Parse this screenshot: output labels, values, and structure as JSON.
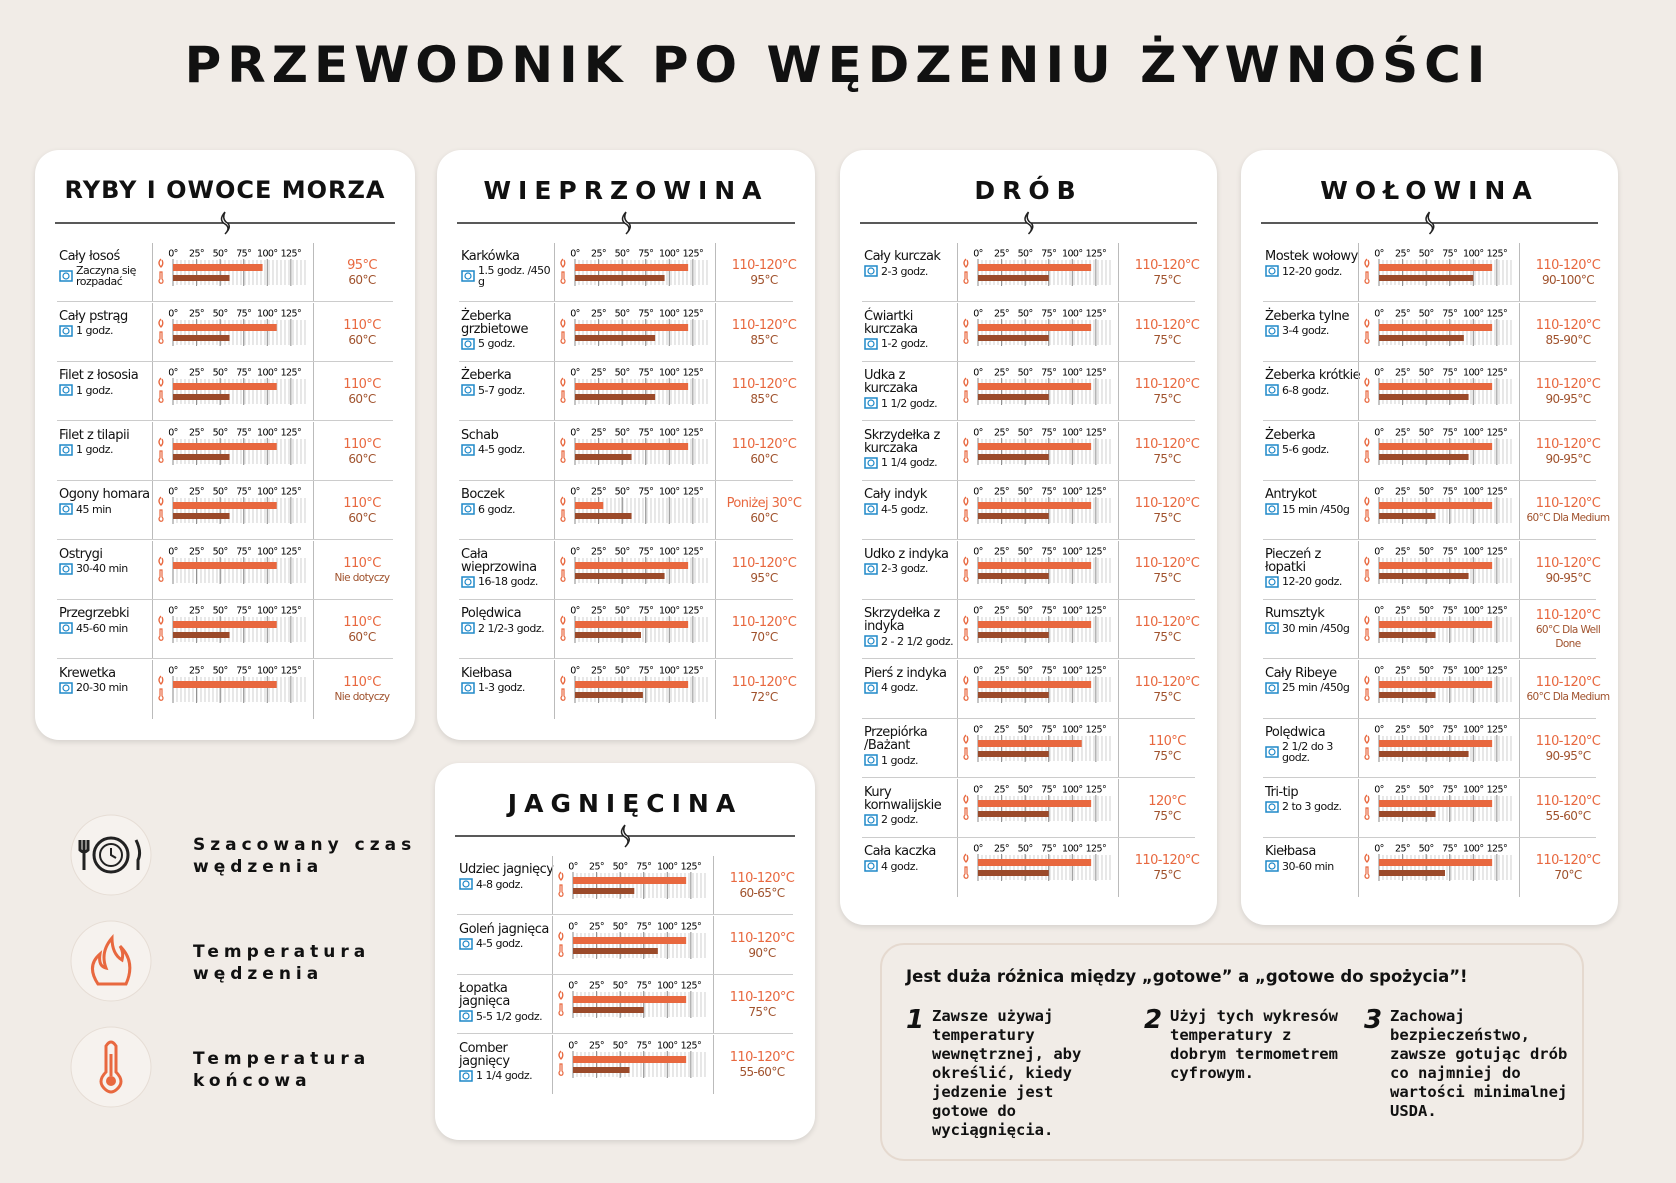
{
  "title": "PRZEWODNIK PO WĘDZENIU ŻYWNOŚCI",
  "scale": {
    "lim": [
      0,
      140
    ],
    "ticks": [
      {
        "value": 0,
        "label": "0°"
      },
      {
        "value": 25,
        "label": "25°"
      },
      {
        "value": 50,
        "label": "50°"
      },
      {
        "value": 75,
        "label": "75°"
      },
      {
        "value": 100,
        "label": "100°"
      },
      {
        "value": 125,
        "label": "125°"
      }
    ]
  },
  "panels": [
    {
      "title": "RYBY I OWOCE MORZA",
      "rows": [
        {
          "name": "Cały łosoś",
          "time": "Zaczyna się rozpadać",
          "smoke": "95°C",
          "core": "60°C",
          "smoke_val": 95,
          "core_val": 60
        },
        {
          "name": "Cały pstrąg",
          "time": "1 godz.",
          "smoke": "110°C",
          "core": "60°C",
          "smoke_val": 110,
          "core_val": 60
        },
        {
          "name": "Filet z łososia",
          "time": "1 godz.",
          "smoke": "110°C",
          "core": "60°C",
          "smoke_val": 110,
          "core_val": 60
        },
        {
          "name": "Filet z tilapii",
          "time": "1 godz.",
          "smoke": "110°C",
          "core": "60°C",
          "smoke_val": 110,
          "core_val": 60
        },
        {
          "name": "Ogony homara",
          "time": "45 min",
          "smoke": "110°C",
          "core": "60°C",
          "smoke_val": 110,
          "core_val": 60
        },
        {
          "name": "Ostrygi",
          "time": "30-40 min",
          "smoke": "110°C",
          "core": "Nie dotyczy",
          "smoke_val": 110,
          "core_val": null
        },
        {
          "name": "Przegrzebki",
          "time": "45-60 min",
          "smoke": "110°C",
          "core": "60°C",
          "smoke_val": 110,
          "core_val": 60
        },
        {
          "name": "Krewetka",
          "time": "20-30 min",
          "smoke": "110°C",
          "core": "Nie dotyczy",
          "smoke_val": 110,
          "core_val": null
        }
      ]
    },
    {
      "title": "WIEPRZOWINA",
      "rows": [
        {
          "name": "Karkówka",
          "time": "1.5 godz. /450 g",
          "smoke": "110-120°C",
          "core": "95°C",
          "smoke_val": 120,
          "core_val": 95
        },
        {
          "name": "Żeberka grzbietowe",
          "time": "5 godz.",
          "smoke": "110-120°C",
          "core": "85°C",
          "smoke_val": 120,
          "core_val": 85
        },
        {
          "name": "Żeberka",
          "time": "5-7 godz.",
          "smoke": "110-120°C",
          "core": "85°C",
          "smoke_val": 120,
          "core_val": 85
        },
        {
          "name": "Schab",
          "time": "4-5 godz.",
          "smoke": "110-120°C",
          "core": "60°C",
          "smoke_val": 120,
          "core_val": 60
        },
        {
          "name": "Boczek",
          "time": "6 godz.",
          "smoke": "Poniżej 30°C",
          "core": "60°C",
          "smoke_val": 30,
          "core_val": 60
        },
        {
          "name": "Cała wieprzowina",
          "time": "16-18 godz.",
          "smoke": "110-120°C",
          "core": "95°C",
          "smoke_val": 120,
          "core_val": 95
        },
        {
          "name": "Polędwica",
          "time": "2 1/2-3 godz.",
          "smoke": "110-120°C",
          "core": "70°C",
          "smoke_val": 120,
          "core_val": 70
        },
        {
          "name": "Kiełbasa",
          "time": "1-3 godz.",
          "smoke": "110-120°C",
          "core": "72°C",
          "smoke_val": 120,
          "core_val": 72
        }
      ]
    },
    {
      "title": "DRÓB",
      "rows": [
        {
          "name": "Cały kurczak",
          "time": "2-3 godz.",
          "smoke": "110-120°C",
          "core": "75°C",
          "smoke_val": 120,
          "core_val": 75
        },
        {
          "name": "Ćwiartki kurczaka",
          "time": "1-2 godz.",
          "smoke": "110-120°C",
          "core": "75°C",
          "smoke_val": 120,
          "core_val": 75
        },
        {
          "name": "Udka z kurczaka",
          "time": "1 1/2 godz.",
          "smoke": "110-120°C",
          "core": "75°C",
          "smoke_val": 120,
          "core_val": 75
        },
        {
          "name": "Skrzydełka z kurczaka",
          "time": "1 1/4 godz.",
          "smoke": "110-120°C",
          "core": "75°C",
          "smoke_val": 120,
          "core_val": 75
        },
        {
          "name": "Cały indyk",
          "time": "4-5 godz.",
          "smoke": "110-120°C",
          "core": "75°C",
          "smoke_val": 120,
          "core_val": 75
        },
        {
          "name": "Udko z indyka",
          "time": "2-3 godz.",
          "smoke": "110-120°C",
          "core": "75°C",
          "smoke_val": 120,
          "core_val": 75
        },
        {
          "name": "Skrzydełka z indyka",
          "time": "2 - 2 1/2 godz.",
          "smoke": "110-120°C",
          "core": "75°C",
          "smoke_val": 120,
          "core_val": 75
        },
        {
          "name": "Pierś z indyka",
          "time": "4 godz.",
          "smoke": "110-120°C",
          "core": "75°C",
          "smoke_val": 120,
          "core_val": 75
        },
        {
          "name": "Przepiórka /Bażant",
          "time": "1 godz.",
          "smoke": "110°C",
          "core": "75°C",
          "smoke_val": 110,
          "core_val": 75
        },
        {
          "name": "Kury kornwalijskie",
          "time": "2 godz.",
          "smoke": "120°C",
          "core": "75°C",
          "smoke_val": 120,
          "core_val": 75
        },
        {
          "name": "Cała kaczka",
          "time": "4 godz.",
          "smoke": "110-120°C",
          "core": "75°C",
          "smoke_val": 120,
          "core_val": 75
        }
      ]
    },
    {
      "title": "WOŁOWINA",
      "rows": [
        {
          "name": "Mostek wołowy",
          "time": "12-20 godz.",
          "smoke": "110-120°C",
          "core": "90-100°C",
          "smoke_val": 120,
          "core_val": 100
        },
        {
          "name": "Żeberka tylne",
          "time": "3-4 godz.",
          "smoke": "110-120°C",
          "core": "85-90°C",
          "smoke_val": 120,
          "core_val": 90
        },
        {
          "name": "Żeberka krótkie",
          "time": "6-8 godz.",
          "smoke": "110-120°C",
          "core": "90-95°C",
          "smoke_val": 120,
          "core_val": 95
        },
        {
          "name": "Żeberka",
          "time": "5-6 godz.",
          "smoke": "110-120°C",
          "core": "90-95°C",
          "smoke_val": 120,
          "core_val": 95
        },
        {
          "name": "Antrykot",
          "time": "15 min /450g",
          "smoke": "110-120°C",
          "core": "60°C Dla Medium",
          "smoke_val": 120,
          "core_val": 60
        },
        {
          "name": "Pieczeń z łopatki",
          "time": "12-20 godz.",
          "smoke": "110-120°C",
          "core": "90-95°C",
          "smoke_val": 120,
          "core_val": 95
        },
        {
          "name": "Rumsztyk",
          "time": "30 min /450g",
          "smoke": "110-120°C",
          "core": "60°C Dla Well Done",
          "smoke_val": 120,
          "core_val": 60
        },
        {
          "name": "Cały Ribeye",
          "time": "25 min /450g",
          "smoke": "110-120°C",
          "core": "60°C Dla Medium",
          "smoke_val": 120,
          "core_val": 60
        },
        {
          "name": "Polędwica",
          "time": "2 1/2 do 3 godz.",
          "smoke": "110-120°C",
          "core": "90-95°C",
          "smoke_val": 120,
          "core_val": 95
        },
        {
          "name": "Tri-tip",
          "time": "2 to 3 godz.",
          "smoke": "110-120°C",
          "core": "55-60°C",
          "smoke_val": 120,
          "core_val": 60
        },
        {
          "name": "Kiełbasa",
          "time": "30-60 min",
          "smoke": "110-120°C",
          "core": "70°C",
          "smoke_val": 120,
          "core_val": 70
        }
      ]
    },
    {
      "title": "JAGNIĘCINA",
      "rows": [
        {
          "name": "Udziec jagnięcy",
          "time": "4-8 godz.",
          "smoke": "110-120°C",
          "core": "60-65°C",
          "smoke_val": 120,
          "core_val": 65
        },
        {
          "name": "Goleń jagnięca",
          "time": "4-5 godz.",
          "smoke": "110-120°C",
          "core": "90°C",
          "smoke_val": 120,
          "core_val": 90
        },
        {
          "name": "Łopatka jagnięca",
          "time": "5-5 1/2 godz.",
          "smoke": "110-120°C",
          "core": "75°C",
          "smoke_val": 120,
          "core_val": 75
        },
        {
          "name": "Comber jagnięcy",
          "time": "1 1/4 godz.",
          "smoke": "110-120°C",
          "core": "55-60°C",
          "smoke_val": 120,
          "core_val": 60
        }
      ]
    }
  ],
  "legend": [
    "Szacowany czas wędzenia",
    "Temperatura wędzenia",
    "Temperatura końcowa"
  ],
  "note": {
    "heading": "Jest duża różnica między „gotowe” a „gotowe do spożycia”!",
    "tips": [
      {
        "number": "1",
        "text": "Zawsze używaj temperatury wewnętrznej, aby określić, kiedy jedzenie jest gotowe do wyciągnięcia."
      },
      {
        "number": "2",
        "text": "Użyj tych wykresów temperatury z dobrym termometrem cyfrowym."
      },
      {
        "number": "3",
        "text": "Zachowaj bezpieczeństwo, zawsze gotując drób co najmniej do wartości minimalnej USDA."
      }
    ]
  }
}
